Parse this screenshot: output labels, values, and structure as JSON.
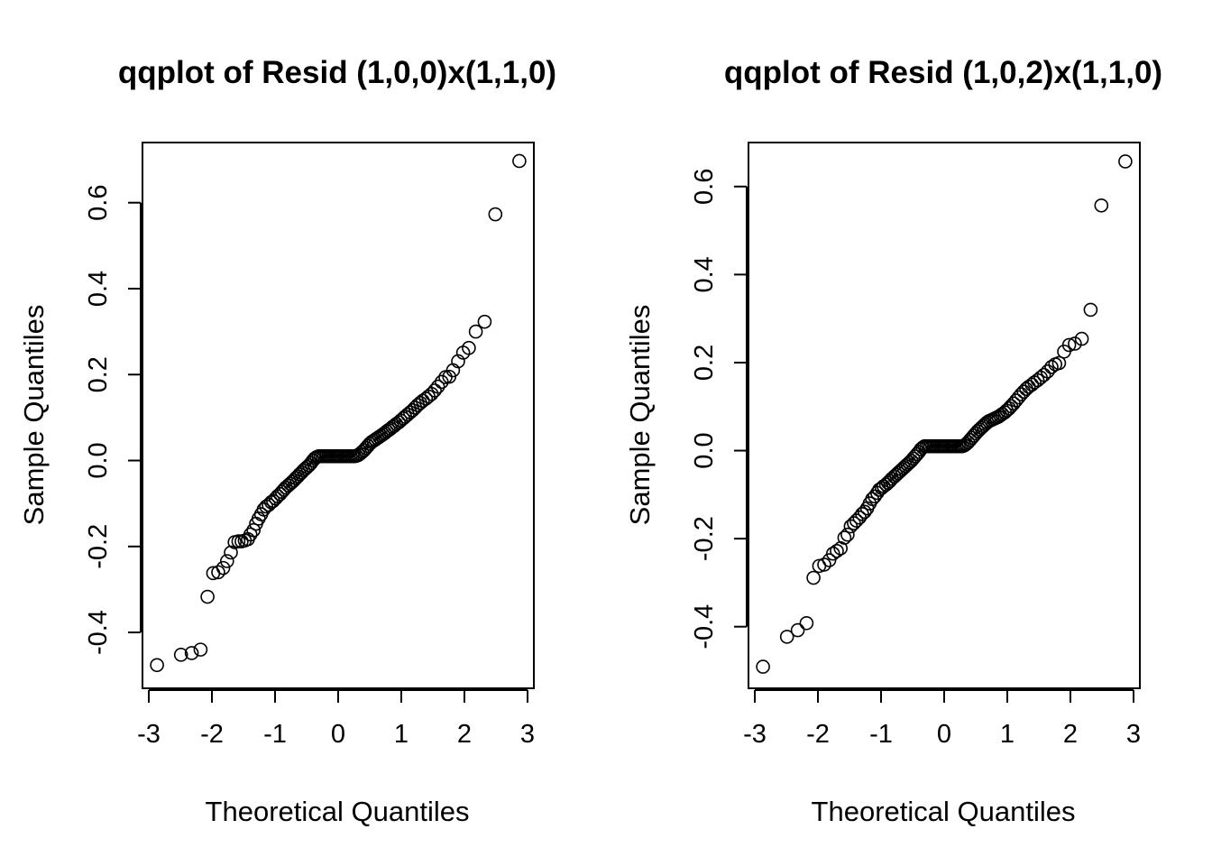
{
  "chart_data": [
    {
      "type": "scatter",
      "title": "qqplot of Resid (1,0,0)x(1,1,0)",
      "xlabel": "Theoretical Quantiles",
      "ylabel": "Sample Quantiles",
      "xlim": [
        -3.1,
        3.1
      ],
      "ylim": [
        -0.53,
        0.74
      ],
      "xticks": [
        -3,
        -2,
        -1,
        0,
        1,
        2,
        3
      ],
      "yticks": [
        -0.4,
        -0.2,
        0.0,
        0.2,
        0.4,
        0.6
      ],
      "xtick_labels": [
        "-3",
        "-2",
        "-1",
        "0",
        "1",
        "2",
        "3"
      ],
      "ytick_labels": [
        "-0.4",
        "-0.2",
        "0.0",
        "0.2",
        "0.4",
        "0.6"
      ],
      "grid": false,
      "legend": "none",
      "points": [
        [
          -2.87,
          -0.476
        ],
        [
          -2.49,
          -0.452
        ],
        [
          -2.32,
          -0.448
        ],
        [
          -2.18,
          -0.44
        ],
        [
          -2.07,
          -0.317
        ],
        [
          -1.98,
          -0.262
        ],
        [
          -1.9,
          -0.26
        ],
        [
          -1.82,
          -0.25
        ],
        [
          -1.76,
          -0.234
        ],
        [
          -1.7,
          -0.214
        ],
        [
          -1.64,
          -0.19
        ],
        [
          -1.58,
          -0.188
        ],
        [
          -1.53,
          -0.188
        ],
        [
          -1.48,
          -0.186
        ],
        [
          -1.43,
          -0.183
        ],
        [
          -1.39,
          -0.172
        ],
        [
          -1.34,
          -0.162
        ],
        [
          -1.3,
          -0.147
        ],
        [
          -1.26,
          -0.135
        ],
        [
          -1.22,
          -0.125
        ],
        [
          -1.18,
          -0.114
        ],
        [
          -1.14,
          -0.107
        ],
        [
          -1.1,
          -0.103
        ],
        [
          -1.06,
          -0.097
        ],
        [
          -1.03,
          -0.094
        ],
        [
          -0.99,
          -0.088
        ],
        [
          -0.96,
          -0.083
        ],
        [
          -0.92,
          -0.078
        ],
        [
          -0.89,
          -0.073
        ],
        [
          -0.86,
          -0.068
        ],
        [
          -0.83,
          -0.063
        ],
        [
          -0.79,
          -0.058
        ],
        [
          -0.76,
          -0.054
        ],
        [
          -0.73,
          -0.05
        ],
        [
          -0.7,
          -0.046
        ],
        [
          -0.67,
          -0.041
        ],
        [
          -0.64,
          -0.037
        ],
        [
          -0.61,
          -0.032
        ],
        [
          -0.58,
          -0.028
        ],
        [
          -0.55,
          -0.023
        ],
        [
          -0.52,
          -0.019
        ],
        [
          -0.49,
          -0.015
        ],
        [
          -0.46,
          -0.011
        ],
        [
          -0.43,
          -0.006
        ],
        [
          -0.4,
          0.0
        ],
        [
          -0.37,
          0.005
        ],
        [
          -0.34,
          0.008
        ],
        [
          -0.31,
          0.01
        ],
        [
          -0.28,
          0.01
        ],
        [
          -0.25,
          0.01
        ],
        [
          -0.22,
          0.01
        ],
        [
          -0.19,
          0.01
        ],
        [
          -0.16,
          0.01
        ],
        [
          -0.13,
          0.01
        ],
        [
          -0.1,
          0.01
        ],
        [
          -0.07,
          0.01
        ],
        [
          -0.04,
          0.01
        ],
        [
          -0.01,
          0.01
        ],
        [
          0.02,
          0.01
        ],
        [
          0.05,
          0.01
        ],
        [
          0.08,
          0.01
        ],
        [
          0.11,
          0.01
        ],
        [
          0.14,
          0.01
        ],
        [
          0.17,
          0.01
        ],
        [
          0.2,
          0.01
        ],
        [
          0.23,
          0.01
        ],
        [
          0.26,
          0.01
        ],
        [
          0.29,
          0.011
        ],
        [
          0.32,
          0.013
        ],
        [
          0.35,
          0.016
        ],
        [
          0.38,
          0.02
        ],
        [
          0.41,
          0.024
        ],
        [
          0.44,
          0.029
        ],
        [
          0.47,
          0.034
        ],
        [
          0.5,
          0.039
        ],
        [
          0.53,
          0.043
        ],
        [
          0.56,
          0.046
        ],
        [
          0.59,
          0.049
        ],
        [
          0.62,
          0.052
        ],
        [
          0.65,
          0.055
        ],
        [
          0.68,
          0.058
        ],
        [
          0.71,
          0.061
        ],
        [
          0.74,
          0.064
        ],
        [
          0.77,
          0.068
        ],
        [
          0.8,
          0.071
        ],
        [
          0.83,
          0.074
        ],
        [
          0.86,
          0.078
        ],
        [
          0.89,
          0.081
        ],
        [
          0.92,
          0.085
        ],
        [
          0.96,
          0.089
        ],
        [
          0.99,
          0.093
        ],
        [
          1.03,
          0.098
        ],
        [
          1.06,
          0.102
        ],
        [
          1.1,
          0.107
        ],
        [
          1.14,
          0.112
        ],
        [
          1.18,
          0.117
        ],
        [
          1.22,
          0.123
        ],
        [
          1.26,
          0.129
        ],
        [
          1.3,
          0.134
        ],
        [
          1.34,
          0.139
        ],
        [
          1.39,
          0.144
        ],
        [
          1.43,
          0.149
        ],
        [
          1.48,
          0.155
        ],
        [
          1.53,
          0.163
        ],
        [
          1.58,
          0.172
        ],
        [
          1.64,
          0.183
        ],
        [
          1.7,
          0.194
        ],
        [
          1.76,
          0.195
        ],
        [
          1.82,
          0.21
        ],
        [
          1.9,
          0.231
        ],
        [
          1.98,
          0.251
        ],
        [
          2.07,
          0.262
        ],
        [
          2.18,
          0.3
        ],
        [
          2.32,
          0.323
        ],
        [
          2.49,
          0.573
        ],
        [
          2.87,
          0.697
        ]
      ]
    },
    {
      "type": "scatter",
      "title": "qqplot of Resid (1,0,2)x(1,1,0)",
      "xlabel": "Theoretical Quantiles",
      "ylabel": "Sample Quantiles",
      "xlim": [
        -3.1,
        3.1
      ],
      "ylim": [
        -0.54,
        0.7
      ],
      "xticks": [
        -3,
        -2,
        -1,
        0,
        1,
        2,
        3
      ],
      "yticks": [
        -0.4,
        -0.2,
        0.0,
        0.2,
        0.4,
        0.6
      ],
      "xtick_labels": [
        "-3",
        "-2",
        "-1",
        "0",
        "1",
        "2",
        "3"
      ],
      "ytick_labels": [
        "-0.4",
        "-0.2",
        "0.0",
        "0.2",
        "0.4",
        "0.6"
      ],
      "grid": false,
      "legend": "none",
      "points": [
        [
          -2.87,
          -0.491
        ],
        [
          -2.49,
          -0.423
        ],
        [
          -2.32,
          -0.408
        ],
        [
          -2.18,
          -0.392
        ],
        [
          -2.07,
          -0.289
        ],
        [
          -1.98,
          -0.262
        ],
        [
          -1.9,
          -0.259
        ],
        [
          -1.82,
          -0.249
        ],
        [
          -1.76,
          -0.234
        ],
        [
          -1.7,
          -0.228
        ],
        [
          -1.64,
          -0.222
        ],
        [
          -1.58,
          -0.198
        ],
        [
          -1.53,
          -0.191
        ],
        [
          -1.48,
          -0.172
        ],
        [
          -1.43,
          -0.165
        ],
        [
          -1.39,
          -0.159
        ],
        [
          -1.34,
          -0.152
        ],
        [
          -1.3,
          -0.144
        ],
        [
          -1.26,
          -0.139
        ],
        [
          -1.22,
          -0.131
        ],
        [
          -1.18,
          -0.12
        ],
        [
          -1.14,
          -0.11
        ],
        [
          -1.1,
          -0.104
        ],
        [
          -1.06,
          -0.096
        ],
        [
          -1.03,
          -0.089
        ],
        [
          -0.99,
          -0.085
        ],
        [
          -0.96,
          -0.081
        ],
        [
          -0.92,
          -0.077
        ],
        [
          -0.89,
          -0.073
        ],
        [
          -0.86,
          -0.069
        ],
        [
          -0.83,
          -0.064
        ],
        [
          -0.79,
          -0.059
        ],
        [
          -0.76,
          -0.055
        ],
        [
          -0.73,
          -0.051
        ],
        [
          -0.7,
          -0.047
        ],
        [
          -0.67,
          -0.043
        ],
        [
          -0.64,
          -0.039
        ],
        [
          -0.61,
          -0.035
        ],
        [
          -0.58,
          -0.031
        ],
        [
          -0.55,
          -0.027
        ],
        [
          -0.52,
          -0.023
        ],
        [
          -0.49,
          -0.018
        ],
        [
          -0.46,
          -0.013
        ],
        [
          -0.43,
          -0.008
        ],
        [
          -0.4,
          -0.003
        ],
        [
          -0.37,
          0.003
        ],
        [
          -0.34,
          0.007
        ],
        [
          -0.31,
          0.01
        ],
        [
          -0.28,
          0.01
        ],
        [
          -0.25,
          0.01
        ],
        [
          -0.22,
          0.01
        ],
        [
          -0.19,
          0.01
        ],
        [
          -0.16,
          0.01
        ],
        [
          -0.13,
          0.01
        ],
        [
          -0.1,
          0.01
        ],
        [
          -0.07,
          0.01
        ],
        [
          -0.04,
          0.01
        ],
        [
          -0.01,
          0.01
        ],
        [
          0.02,
          0.01
        ],
        [
          0.05,
          0.01
        ],
        [
          0.08,
          0.01
        ],
        [
          0.11,
          0.01
        ],
        [
          0.14,
          0.01
        ],
        [
          0.17,
          0.01
        ],
        [
          0.2,
          0.01
        ],
        [
          0.23,
          0.01
        ],
        [
          0.26,
          0.01
        ],
        [
          0.29,
          0.01
        ],
        [
          0.32,
          0.012
        ],
        [
          0.35,
          0.015
        ],
        [
          0.38,
          0.019
        ],
        [
          0.41,
          0.024
        ],
        [
          0.44,
          0.029
        ],
        [
          0.47,
          0.034
        ],
        [
          0.5,
          0.039
        ],
        [
          0.53,
          0.044
        ],
        [
          0.56,
          0.048
        ],
        [
          0.59,
          0.052
        ],
        [
          0.62,
          0.056
        ],
        [
          0.65,
          0.06
        ],
        [
          0.68,
          0.064
        ],
        [
          0.71,
          0.067
        ],
        [
          0.74,
          0.069
        ],
        [
          0.77,
          0.071
        ],
        [
          0.8,
          0.073
        ],
        [
          0.83,
          0.075
        ],
        [
          0.86,
          0.077
        ],
        [
          0.89,
          0.08
        ],
        [
          0.92,
          0.083
        ],
        [
          0.96,
          0.087
        ],
        [
          0.99,
          0.091
        ],
        [
          1.03,
          0.096
        ],
        [
          1.06,
          0.101
        ],
        [
          1.1,
          0.107
        ],
        [
          1.14,
          0.114
        ],
        [
          1.18,
          0.121
        ],
        [
          1.22,
          0.128
        ],
        [
          1.26,
          0.134
        ],
        [
          1.3,
          0.14
        ],
        [
          1.34,
          0.145
        ],
        [
          1.39,
          0.15
        ],
        [
          1.43,
          0.155
        ],
        [
          1.48,
          0.16
        ],
        [
          1.53,
          0.166
        ],
        [
          1.58,
          0.172
        ],
        [
          1.64,
          0.18
        ],
        [
          1.7,
          0.19
        ],
        [
          1.76,
          0.196
        ],
        [
          1.82,
          0.199
        ],
        [
          1.9,
          0.225
        ],
        [
          1.98,
          0.24
        ],
        [
          2.07,
          0.243
        ],
        [
          2.18,
          0.254
        ],
        [
          2.32,
          0.32
        ],
        [
          2.49,
          0.557
        ],
        [
          2.87,
          0.657
        ]
      ]
    }
  ]
}
